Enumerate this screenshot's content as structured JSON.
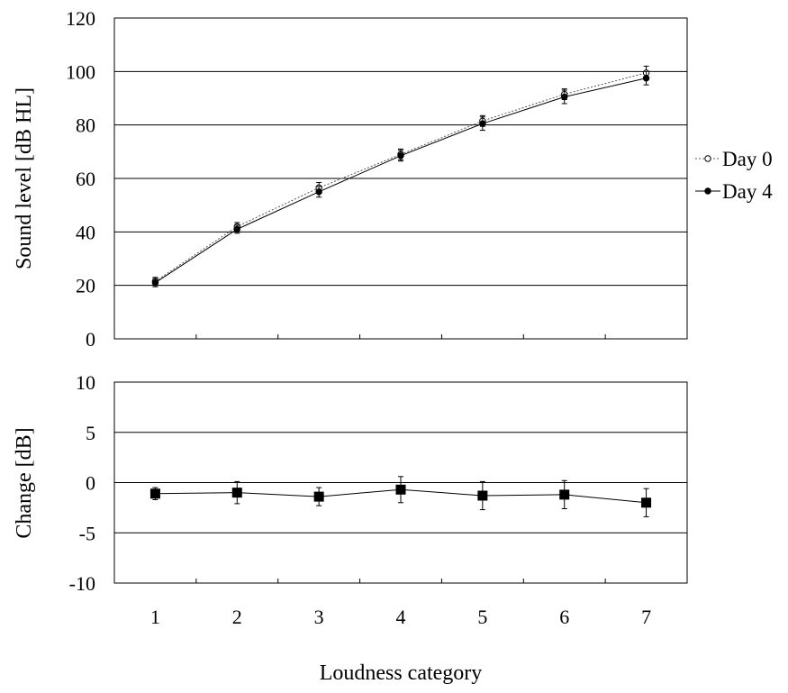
{
  "chart_data": [
    {
      "type": "line",
      "panel": "top",
      "title": "",
      "xlabel": "",
      "ylabel": "Sound level [dB HL]",
      "ylim": [
        0,
        120
      ],
      "yticks": [
        0,
        20,
        40,
        60,
        80,
        100,
        120
      ],
      "x": [
        1,
        2,
        3,
        4,
        5,
        6,
        7
      ],
      "grid": "horizontal",
      "legend_position": "right",
      "series": [
        {
          "name": "Day 0",
          "marker": "open-circle",
          "line_style": "dotted",
          "values": [
            21.5,
            42,
            56.5,
            69,
            81.5,
            91.5,
            99.5
          ],
          "error": [
            1.5,
            1.5,
            2,
            2,
            2,
            2,
            2.5
          ]
        },
        {
          "name": "Day 4",
          "marker": "filled-circle",
          "line_style": "solid",
          "values": [
            21,
            41,
            55,
            68.5,
            80.5,
            90.5,
            97.5
          ],
          "error": [
            1.5,
            1.5,
            2,
            2,
            2.5,
            2.5,
            2.5
          ]
        }
      ]
    },
    {
      "type": "line",
      "panel": "bottom",
      "title": "",
      "xlabel": "Loudness category",
      "ylabel": "Change [dB]",
      "ylim": [
        -10,
        10
      ],
      "yticks": [
        -10,
        -5,
        0,
        5,
        10
      ],
      "categories": [
        "1",
        "2",
        "3",
        "4",
        "5",
        "6",
        "7"
      ],
      "x": [
        1,
        2,
        3,
        4,
        5,
        6,
        7
      ],
      "grid": "horizontal",
      "series": [
        {
          "marker": "filled-square",
          "line_style": "solid",
          "values": [
            -1.1,
            -1.0,
            -1.4,
            -0.7,
            -1.3,
            -1.2,
            -2.0
          ],
          "error": [
            0.6,
            1.1,
            0.9,
            1.3,
            1.4,
            1.4,
            1.4
          ]
        }
      ]
    }
  ]
}
